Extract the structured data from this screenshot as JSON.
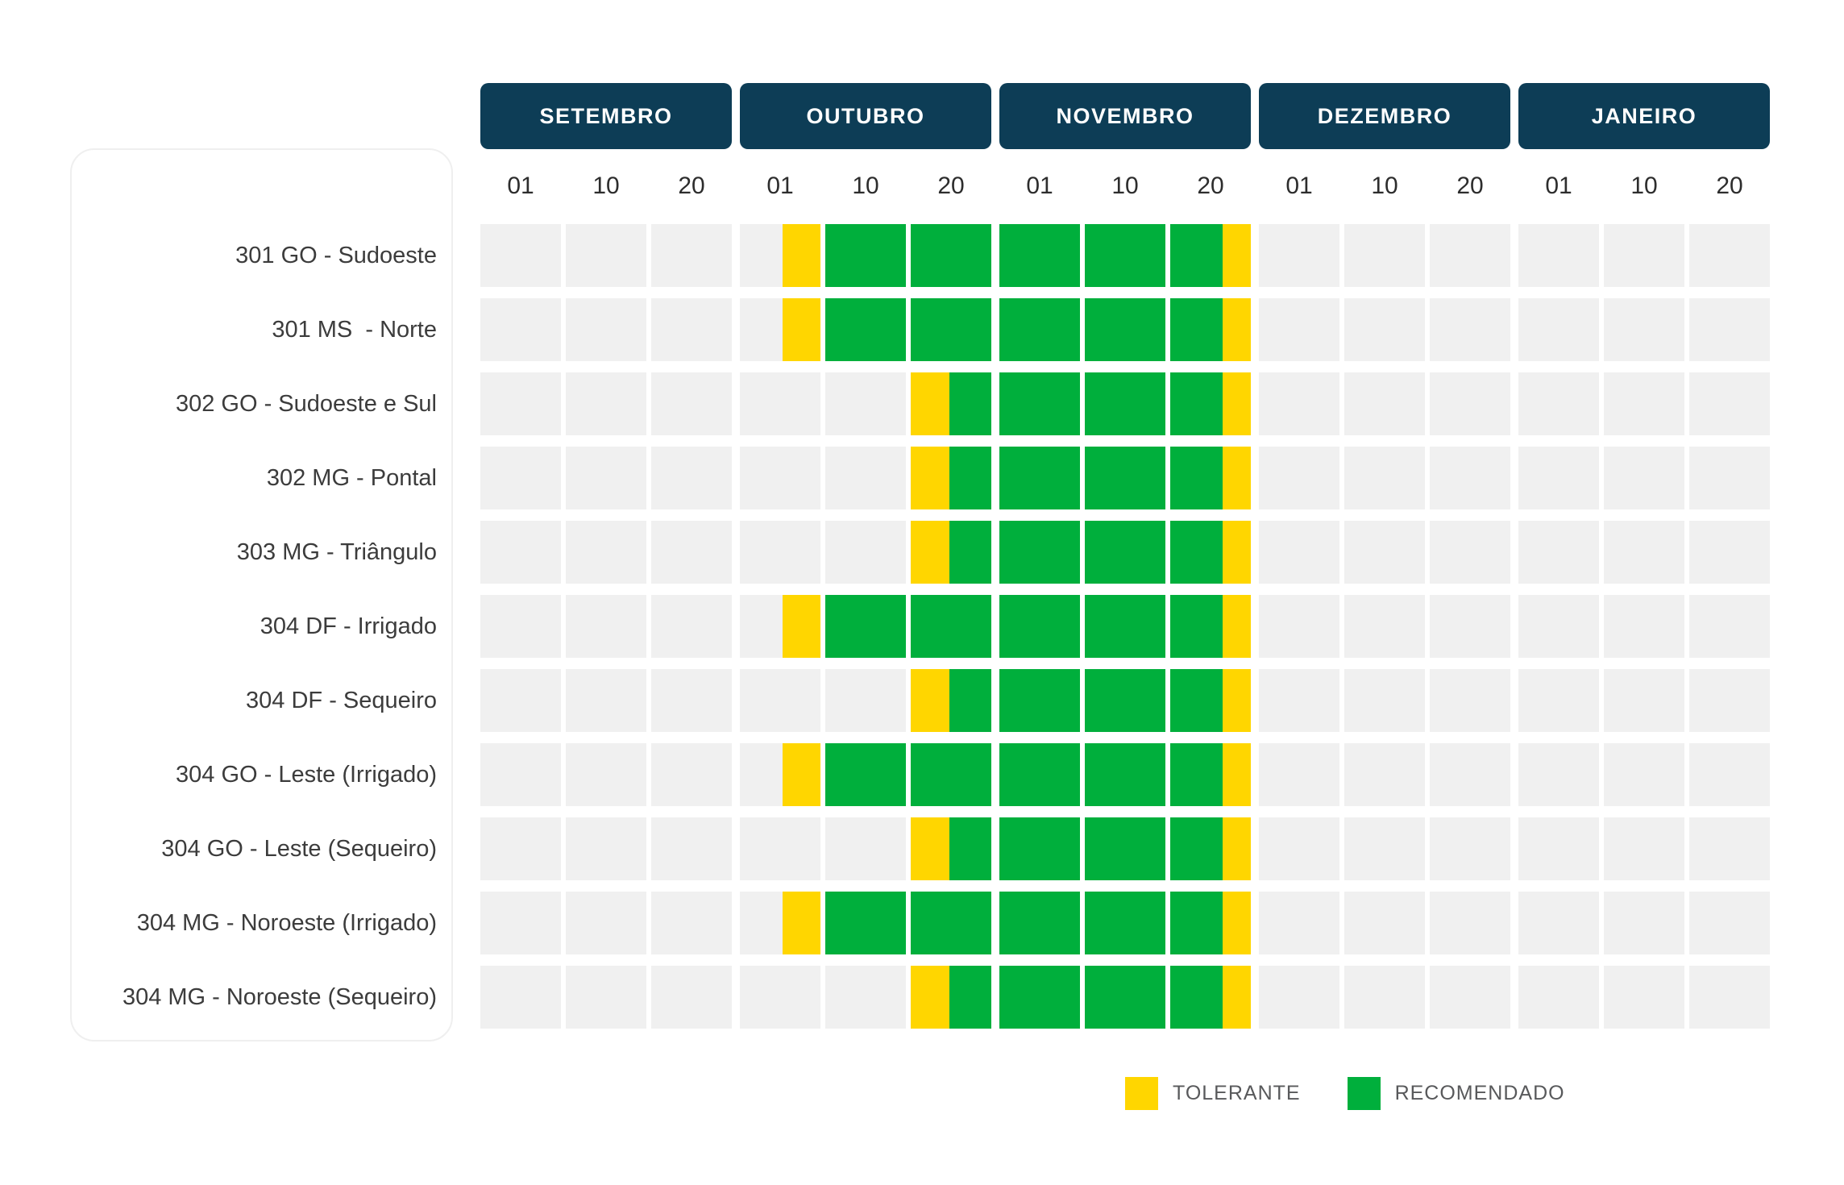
{
  "chart_data": {
    "type": "heatmap",
    "title": "",
    "description": "Planting calendar by region: decads (01/10/20) of each month marked as TOLERANTE (yellow) or RECOMENDADO (green); empty decads are gray.",
    "colors": {
      "E": "#F0F0F0",
      "T": "#FFD600",
      "R": "#00AF3C",
      "header_bg": "#0D3D56",
      "header_text": "#FFFFFF",
      "tick_text": "#2D2D2D",
      "row_label_text": "#3C3C3C",
      "legend_text": "#58595B",
      "card_border": "#EFEFEF",
      "background": "#FFFFFF"
    },
    "months": [
      {
        "label": "SETEMBRO",
        "ticks": [
          "01",
          "10",
          "20"
        ]
      },
      {
        "label": "OUTUBRO",
        "ticks": [
          "01",
          "10",
          "20"
        ]
      },
      {
        "label": "NOVEMBRO",
        "ticks": [
          "01",
          "10",
          "20"
        ]
      },
      {
        "label": "DEZEMBRO",
        "ticks": [
          "01",
          "10",
          "20"
        ]
      },
      {
        "label": "JANEIRO",
        "ticks": [
          "01",
          "10",
          "20"
        ]
      }
    ],
    "legend": [
      {
        "key": "T",
        "label": "TOLERANTE",
        "color": "#FFD600"
      },
      {
        "key": "R",
        "label": "RECOMENDADO",
        "color": "#00AF3C"
      }
    ],
    "rows": [
      {
        "label": "301 GO - Sudoeste",
        "cells": [
          [
            [
              "E",
              100
            ]
          ],
          [
            [
              "E",
              100
            ]
          ],
          [
            [
              "E",
              100
            ]
          ],
          [
            [
              "E",
              53
            ],
            [
              "T",
              47
            ]
          ],
          [
            [
              "R",
              100
            ]
          ],
          [
            [
              "R",
              100
            ]
          ],
          [
            [
              "R",
              100
            ]
          ],
          [
            [
              "R",
              100
            ]
          ],
          [
            [
              "R",
              65
            ],
            [
              "T",
              35
            ]
          ],
          [
            [
              "E",
              100
            ]
          ],
          [
            [
              "E",
              100
            ]
          ],
          [
            [
              "E",
              100
            ]
          ],
          [
            [
              "E",
              100
            ]
          ],
          [
            [
              "E",
              100
            ]
          ],
          [
            [
              "E",
              100
            ]
          ]
        ]
      },
      {
        "label": "301 MS  - Norte",
        "cells": [
          [
            [
              "E",
              100
            ]
          ],
          [
            [
              "E",
              100
            ]
          ],
          [
            [
              "E",
              100
            ]
          ],
          [
            [
              "E",
              53
            ],
            [
              "T",
              47
            ]
          ],
          [
            [
              "R",
              100
            ]
          ],
          [
            [
              "R",
              100
            ]
          ],
          [
            [
              "R",
              100
            ]
          ],
          [
            [
              "R",
              100
            ]
          ],
          [
            [
              "R",
              65
            ],
            [
              "T",
              35
            ]
          ],
          [
            [
              "E",
              100
            ]
          ],
          [
            [
              "E",
              100
            ]
          ],
          [
            [
              "E",
              100
            ]
          ],
          [
            [
              "E",
              100
            ]
          ],
          [
            [
              "E",
              100
            ]
          ],
          [
            [
              "E",
              100
            ]
          ]
        ]
      },
      {
        "label": "302 GO - Sudoeste e Sul",
        "cells": [
          [
            [
              "E",
              100
            ]
          ],
          [
            [
              "E",
              100
            ]
          ],
          [
            [
              "E",
              100
            ]
          ],
          [
            [
              "E",
              100
            ]
          ],
          [
            [
              "E",
              100
            ]
          ],
          [
            [
              "T",
              48
            ],
            [
              "R",
              52
            ]
          ],
          [
            [
              "R",
              100
            ]
          ],
          [
            [
              "R",
              100
            ]
          ],
          [
            [
              "R",
              65
            ],
            [
              "T",
              35
            ]
          ],
          [
            [
              "E",
              100
            ]
          ],
          [
            [
              "E",
              100
            ]
          ],
          [
            [
              "E",
              100
            ]
          ],
          [
            [
              "E",
              100
            ]
          ],
          [
            [
              "E",
              100
            ]
          ],
          [
            [
              "E",
              100
            ]
          ]
        ]
      },
      {
        "label": "302 MG - Pontal",
        "cells": [
          [
            [
              "E",
              100
            ]
          ],
          [
            [
              "E",
              100
            ]
          ],
          [
            [
              "E",
              100
            ]
          ],
          [
            [
              "E",
              100
            ]
          ],
          [
            [
              "E",
              100
            ]
          ],
          [
            [
              "T",
              48
            ],
            [
              "R",
              52
            ]
          ],
          [
            [
              "R",
              100
            ]
          ],
          [
            [
              "R",
              100
            ]
          ],
          [
            [
              "R",
              65
            ],
            [
              "T",
              35
            ]
          ],
          [
            [
              "E",
              100
            ]
          ],
          [
            [
              "E",
              100
            ]
          ],
          [
            [
              "E",
              100
            ]
          ],
          [
            [
              "E",
              100
            ]
          ],
          [
            [
              "E",
              100
            ]
          ],
          [
            [
              "E",
              100
            ]
          ]
        ]
      },
      {
        "label": "303 MG - Triângulo",
        "cells": [
          [
            [
              "E",
              100
            ]
          ],
          [
            [
              "E",
              100
            ]
          ],
          [
            [
              "E",
              100
            ]
          ],
          [
            [
              "E",
              100
            ]
          ],
          [
            [
              "E",
              100
            ]
          ],
          [
            [
              "T",
              48
            ],
            [
              "R",
              52
            ]
          ],
          [
            [
              "R",
              100
            ]
          ],
          [
            [
              "R",
              100
            ]
          ],
          [
            [
              "R",
              65
            ],
            [
              "T",
              35
            ]
          ],
          [
            [
              "E",
              100
            ]
          ],
          [
            [
              "E",
              100
            ]
          ],
          [
            [
              "E",
              100
            ]
          ],
          [
            [
              "E",
              100
            ]
          ],
          [
            [
              "E",
              100
            ]
          ],
          [
            [
              "E",
              100
            ]
          ]
        ]
      },
      {
        "label": "304 DF - Irrigado",
        "cells": [
          [
            [
              "E",
              100
            ]
          ],
          [
            [
              "E",
              100
            ]
          ],
          [
            [
              "E",
              100
            ]
          ],
          [
            [
              "E",
              53
            ],
            [
              "T",
              47
            ]
          ],
          [
            [
              "R",
              100
            ]
          ],
          [
            [
              "R",
              100
            ]
          ],
          [
            [
              "R",
              100
            ]
          ],
          [
            [
              "R",
              100
            ]
          ],
          [
            [
              "R",
              65
            ],
            [
              "T",
              35
            ]
          ],
          [
            [
              "E",
              100
            ]
          ],
          [
            [
              "E",
              100
            ]
          ],
          [
            [
              "E",
              100
            ]
          ],
          [
            [
              "E",
              100
            ]
          ],
          [
            [
              "E",
              100
            ]
          ],
          [
            [
              "E",
              100
            ]
          ]
        ]
      },
      {
        "label": "304 DF - Sequeiro",
        "cells": [
          [
            [
              "E",
              100
            ]
          ],
          [
            [
              "E",
              100
            ]
          ],
          [
            [
              "E",
              100
            ]
          ],
          [
            [
              "E",
              100
            ]
          ],
          [
            [
              "E",
              100
            ]
          ],
          [
            [
              "T",
              48
            ],
            [
              "R",
              52
            ]
          ],
          [
            [
              "R",
              100
            ]
          ],
          [
            [
              "R",
              100
            ]
          ],
          [
            [
              "R",
              65
            ],
            [
              "T",
              35
            ]
          ],
          [
            [
              "E",
              100
            ]
          ],
          [
            [
              "E",
              100
            ]
          ],
          [
            [
              "E",
              100
            ]
          ],
          [
            [
              "E",
              100
            ]
          ],
          [
            [
              "E",
              100
            ]
          ],
          [
            [
              "E",
              100
            ]
          ]
        ]
      },
      {
        "label": "304 GO - Leste (Irrigado)",
        "cells": [
          [
            [
              "E",
              100
            ]
          ],
          [
            [
              "E",
              100
            ]
          ],
          [
            [
              "E",
              100
            ]
          ],
          [
            [
              "E",
              53
            ],
            [
              "T",
              47
            ]
          ],
          [
            [
              "R",
              100
            ]
          ],
          [
            [
              "R",
              100
            ]
          ],
          [
            [
              "R",
              100
            ]
          ],
          [
            [
              "R",
              100
            ]
          ],
          [
            [
              "R",
              65
            ],
            [
              "T",
              35
            ]
          ],
          [
            [
              "E",
              100
            ]
          ],
          [
            [
              "E",
              100
            ]
          ],
          [
            [
              "E",
              100
            ]
          ],
          [
            [
              "E",
              100
            ]
          ],
          [
            [
              "E",
              100
            ]
          ],
          [
            [
              "E",
              100
            ]
          ]
        ]
      },
      {
        "label": "304 GO - Leste (Sequeiro)",
        "cells": [
          [
            [
              "E",
              100
            ]
          ],
          [
            [
              "E",
              100
            ]
          ],
          [
            [
              "E",
              100
            ]
          ],
          [
            [
              "E",
              100
            ]
          ],
          [
            [
              "E",
              100
            ]
          ],
          [
            [
              "T",
              48
            ],
            [
              "R",
              52
            ]
          ],
          [
            [
              "R",
              100
            ]
          ],
          [
            [
              "R",
              100
            ]
          ],
          [
            [
              "R",
              65
            ],
            [
              "T",
              35
            ]
          ],
          [
            [
              "E",
              100
            ]
          ],
          [
            [
              "E",
              100
            ]
          ],
          [
            [
              "E",
              100
            ]
          ],
          [
            [
              "E",
              100
            ]
          ],
          [
            [
              "E",
              100
            ]
          ],
          [
            [
              "E",
              100
            ]
          ]
        ]
      },
      {
        "label": "304 MG - Noroeste (Irrigado)",
        "cells": [
          [
            [
              "E",
              100
            ]
          ],
          [
            [
              "E",
              100
            ]
          ],
          [
            [
              "E",
              100
            ]
          ],
          [
            [
              "E",
              53
            ],
            [
              "T",
              47
            ]
          ],
          [
            [
              "R",
              100
            ]
          ],
          [
            [
              "R",
              100
            ]
          ],
          [
            [
              "R",
              100
            ]
          ],
          [
            [
              "R",
              100
            ]
          ],
          [
            [
              "R",
              65
            ],
            [
              "T",
              35
            ]
          ],
          [
            [
              "E",
              100
            ]
          ],
          [
            [
              "E",
              100
            ]
          ],
          [
            [
              "E",
              100
            ]
          ],
          [
            [
              "E",
              100
            ]
          ],
          [
            [
              "E",
              100
            ]
          ],
          [
            [
              "E",
              100
            ]
          ]
        ]
      },
      {
        "label": "304 MG - Noroeste (Sequeiro)",
        "cells": [
          [
            [
              "E",
              100
            ]
          ],
          [
            [
              "E",
              100
            ]
          ],
          [
            [
              "E",
              100
            ]
          ],
          [
            [
              "E",
              100
            ]
          ],
          [
            [
              "E",
              100
            ]
          ],
          [
            [
              "T",
              48
            ],
            [
              "R",
              52
            ]
          ],
          [
            [
              "R",
              100
            ]
          ],
          [
            [
              "R",
              100
            ]
          ],
          [
            [
              "R",
              65
            ],
            [
              "T",
              35
            ]
          ],
          [
            [
              "E",
              100
            ]
          ],
          [
            [
              "E",
              100
            ]
          ],
          [
            [
              "E",
              100
            ]
          ],
          [
            [
              "E",
              100
            ]
          ],
          [
            [
              "E",
              100
            ]
          ],
          [
            [
              "E",
              100
            ]
          ]
        ]
      }
    ]
  }
}
